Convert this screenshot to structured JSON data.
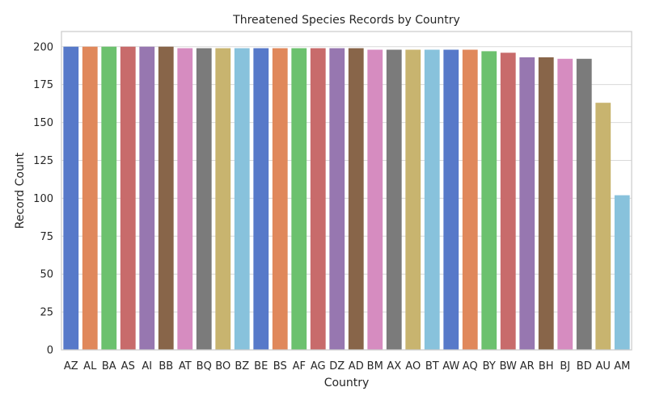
{
  "chart_data": {
    "type": "bar",
    "title": "Threatened Species Records by Country",
    "xlabel": "Country",
    "ylabel": "Record Count",
    "ylim": [
      0,
      210
    ],
    "yticks": [
      0,
      25,
      50,
      75,
      100,
      125,
      150,
      175,
      200
    ],
    "grid": true,
    "categories": [
      "AZ",
      "AL",
      "BA",
      "AS",
      "AI",
      "BB",
      "AT",
      "BQ",
      "BO",
      "BZ",
      "BE",
      "BS",
      "AF",
      "AG",
      "DZ",
      "AD",
      "BM",
      "AX",
      "AO",
      "BT",
      "AW",
      "AQ",
      "BY",
      "BW",
      "AR",
      "BH",
      "BJ",
      "BD",
      "AU",
      "AM"
    ],
    "values": [
      200,
      200,
      200,
      200,
      200,
      200,
      199,
      199,
      199,
      199,
      199,
      199,
      199,
      199,
      199,
      199,
      198,
      198,
      198,
      198,
      198,
      198,
      197,
      196,
      193,
      193,
      192,
      192,
      163,
      102
    ],
    "palette": [
      "#5779c9",
      "#e0885b",
      "#6cc16e",
      "#c86b6b",
      "#9777b0",
      "#886549",
      "#d68cc0",
      "#7b7b7b",
      "#c8b46f",
      "#88c2dc"
    ],
    "background": "#ffffff",
    "grid_color": "#d9d9d9",
    "spine_color": "#cccccc"
  }
}
